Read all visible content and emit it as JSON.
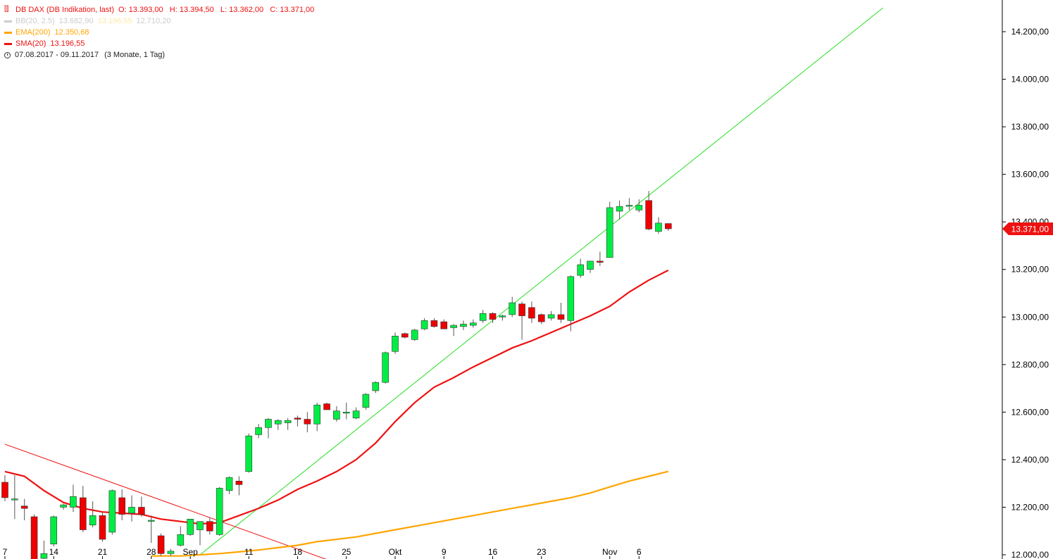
{
  "legend": {
    "instrument_icon": "candlestick-icon",
    "instrument": "DB DAX (DB Indikation, last)",
    "ohlc": "O: 13.393,00   H: 13.394,50   L: 13.362,00   C: 13.371,00",
    "bb_label": "BB(20, 2.5)",
    "bb_values": [
      "13.682,90",
      "13.196,55",
      "12.710,20"
    ],
    "ema_label": "EMA(200)",
    "ema_value": "12.350,68",
    "sma_label": "SMA(20)",
    "sma_value": "13.196,55",
    "range_icon": "clock-icon",
    "range": "07.08.2017 - 09.11.2017",
    "range_detail": "(3 Monate, 1 Tag)"
  },
  "colors": {
    "up": "#00ee44",
    "down": "#ee0000",
    "sma": "#ee1111",
    "ema": "#ffa500",
    "bb": "#cccccc",
    "bb_mid": "#ffe9a8",
    "trend_up": "#22dd22",
    "trend_down": "#ee1111",
    "text": "#ee1111",
    "axis": "#000000"
  },
  "last_price_label": "13.371,00",
  "chart_data": {
    "type": "candlestick",
    "ylim": [
      12000,
      14300
    ],
    "yticks": [
      {
        "value": 12000,
        "label": "12.000,00"
      },
      {
        "value": 12200,
        "label": "12.200,00"
      },
      {
        "value": 12400,
        "label": "12.400,00"
      },
      {
        "value": 12600,
        "label": "12.600,00"
      },
      {
        "value": 12800,
        "label": "12.800,00"
      },
      {
        "value": 13000,
        "label": "13.000,00"
      },
      {
        "value": 13200,
        "label": "13.200,00"
      },
      {
        "value": 13400,
        "label": "13.400,00"
      },
      {
        "value": 13600,
        "label": "13.600,00"
      },
      {
        "value": 13800,
        "label": "13.800,00"
      },
      {
        "value": 14000,
        "label": "14.000,00"
      },
      {
        "value": 14200,
        "label": "14.200,00"
      }
    ],
    "xticks": [
      {
        "index": 0,
        "label": "7"
      },
      {
        "index": 5,
        "label": "14"
      },
      {
        "index": 10,
        "label": "21"
      },
      {
        "index": 15,
        "label": "28"
      },
      {
        "index": 19,
        "label": "Sep"
      },
      {
        "index": 25,
        "label": "11"
      },
      {
        "index": 30,
        "label": "18"
      },
      {
        "index": 35,
        "label": "25"
      },
      {
        "index": 40,
        "label": "Okt"
      },
      {
        "index": 45,
        "label": "9"
      },
      {
        "index": 50,
        "label": "16"
      },
      {
        "index": 55,
        "label": "23"
      },
      {
        "index": 62,
        "label": "Nov"
      },
      {
        "index": 65,
        "label": "6"
      }
    ],
    "candles": [
      {
        "o": 12305,
        "h": 12335,
        "l": 12225,
        "c": 12240
      },
      {
        "o": 12235,
        "h": 12335,
        "l": 12150,
        "c": 12235
      },
      {
        "o": 12205,
        "h": 12235,
        "l": 12145,
        "c": 12195
      },
      {
        "o": 12160,
        "h": 12170,
        "l": 11900,
        "c": 11945
      },
      {
        "o": 11985,
        "h": 12060,
        "l": 11935,
        "c": 12005
      },
      {
        "o": 12045,
        "h": 12165,
        "l": 12035,
        "c": 12160
      },
      {
        "o": 12200,
        "h": 12215,
        "l": 12190,
        "c": 12210
      },
      {
        "o": 12200,
        "h": 12295,
        "l": 12180,
        "c": 12245
      },
      {
        "o": 12240,
        "h": 12290,
        "l": 12095,
        "c": 12105
      },
      {
        "o": 12125,
        "h": 12225,
        "l": 12115,
        "c": 12165
      },
      {
        "o": 12165,
        "h": 12180,
        "l": 12055,
        "c": 12065
      },
      {
        "o": 12095,
        "h": 12275,
        "l": 12085,
        "c": 12270
      },
      {
        "o": 12240,
        "h": 12275,
        "l": 12145,
        "c": 12170
      },
      {
        "o": 12175,
        "h": 12250,
        "l": 12140,
        "c": 12200
      },
      {
        "o": 12200,
        "h": 12245,
        "l": 12160,
        "c": 12170
      },
      {
        "o": 12145,
        "h": 12165,
        "l": 12050,
        "c": 12145
      },
      {
        "o": 12080,
        "h": 12090,
        "l": 11995,
        "c": 12005
      },
      {
        "o": 12005,
        "h": 12025,
        "l": 11995,
        "c": 12015
      },
      {
        "o": 12040,
        "h": 12120,
        "l": 12035,
        "c": 12085
      },
      {
        "o": 12085,
        "h": 12150,
        "l": 12080,
        "c": 12150
      },
      {
        "o": 12105,
        "h": 12140,
        "l": 12040,
        "c": 12140
      },
      {
        "o": 12140,
        "h": 12155,
        "l": 12085,
        "c": 12100
      },
      {
        "o": 12085,
        "h": 12285,
        "l": 12080,
        "c": 12280
      },
      {
        "o": 12270,
        "h": 12330,
        "l": 12255,
        "c": 12325
      },
      {
        "o": 12310,
        "h": 12330,
        "l": 12250,
        "c": 12295
      },
      {
        "o": 12350,
        "h": 12510,
        "l": 12345,
        "c": 12500
      },
      {
        "o": 12505,
        "h": 12550,
        "l": 12490,
        "c": 12535
      },
      {
        "o": 12535,
        "h": 12575,
        "l": 12490,
        "c": 12570
      },
      {
        "o": 12550,
        "h": 12570,
        "l": 12525,
        "c": 12565
      },
      {
        "o": 12555,
        "h": 12575,
        "l": 12525,
        "c": 12565
      },
      {
        "o": 12575,
        "h": 12585,
        "l": 12540,
        "c": 12570
      },
      {
        "o": 12570,
        "h": 12600,
        "l": 12515,
        "c": 12550
      },
      {
        "o": 12550,
        "h": 12640,
        "l": 12520,
        "c": 12630
      },
      {
        "o": 12635,
        "h": 12640,
        "l": 12610,
        "c": 12610
      },
      {
        "o": 12570,
        "h": 12625,
        "l": 12560,
        "c": 12605
      },
      {
        "o": 12600,
        "h": 12640,
        "l": 12570,
        "c": 12600
      },
      {
        "o": 12575,
        "h": 12620,
        "l": 12570,
        "c": 12605
      },
      {
        "o": 12620,
        "h": 12680,
        "l": 12610,
        "c": 12675
      },
      {
        "o": 12690,
        "h": 12730,
        "l": 12680,
        "c": 12725
      },
      {
        "o": 12725,
        "h": 12855,
        "l": 12720,
        "c": 12850
      },
      {
        "o": 12855,
        "h": 12935,
        "l": 12845,
        "c": 12920
      },
      {
        "o": 12930,
        "h": 12935,
        "l": 12910,
        "c": 12915
      },
      {
        "o": 12905,
        "h": 12950,
        "l": 12900,
        "c": 12945
      },
      {
        "o": 12950,
        "h": 12995,
        "l": 12945,
        "c": 12985
      },
      {
        "o": 12985,
        "h": 12995,
        "l": 12955,
        "c": 12960
      },
      {
        "o": 12980,
        "h": 12990,
        "l": 12950,
        "c": 12950
      },
      {
        "o": 12955,
        "h": 12970,
        "l": 12920,
        "c": 12965
      },
      {
        "o": 12960,
        "h": 12985,
        "l": 12945,
        "c": 12970
      },
      {
        "o": 12965,
        "h": 12990,
        "l": 12955,
        "c": 12975
      },
      {
        "o": 12985,
        "h": 13030,
        "l": 12975,
        "c": 13015
      },
      {
        "o": 13015,
        "h": 13020,
        "l": 12975,
        "c": 12990
      },
      {
        "o": 13000,
        "h": 13010,
        "l": 12985,
        "c": 13005
      },
      {
        "o": 13010,
        "h": 13085,
        "l": 13000,
        "c": 13060
      },
      {
        "o": 13055,
        "h": 13065,
        "l": 12905,
        "c": 13005
      },
      {
        "o": 13040,
        "h": 13065,
        "l": 12975,
        "c": 12995
      },
      {
        "o": 13010,
        "h": 13015,
        "l": 12970,
        "c": 12980
      },
      {
        "o": 12995,
        "h": 13025,
        "l": 12985,
        "c": 13010
      },
      {
        "o": 13010,
        "h": 13060,
        "l": 12975,
        "c": 12990
      },
      {
        "o": 12985,
        "h": 13175,
        "l": 12940,
        "c": 13170
      },
      {
        "o": 13175,
        "h": 13245,
        "l": 13165,
        "c": 13220
      },
      {
        "o": 13200,
        "h": 13230,
        "l": 13185,
        "c": 13235
      },
      {
        "o": 13235,
        "h": 13275,
        "l": 13215,
        "c": 13230
      },
      {
        "o": 13250,
        "h": 13485,
        "l": 13250,
        "c": 13460
      },
      {
        "o": 13445,
        "h": 13490,
        "l": 13410,
        "c": 13465
      },
      {
        "o": 13470,
        "h": 13500,
        "l": 13450,
        "c": 13470
      },
      {
        "o": 13450,
        "h": 13495,
        "l": 13440,
        "c": 13470
      },
      {
        "o": 13490,
        "h": 13530,
        "l": 13365,
        "c": 13370
      },
      {
        "o": 13360,
        "h": 13420,
        "l": 13350,
        "c": 13395
      },
      {
        "o": 13393,
        "h": 13394.5,
        "l": 13362,
        "c": 13371
      }
    ],
    "sma20": [
      [
        0,
        12350
      ],
      [
        2,
        12330
      ],
      [
        4,
        12270
      ],
      [
        6,
        12220
      ],
      [
        8,
        12195
      ],
      [
        10,
        12180
      ],
      [
        12,
        12175
      ],
      [
        14,
        12170
      ],
      [
        16,
        12150
      ],
      [
        18,
        12140
      ],
      [
        20,
        12130
      ],
      [
        22,
        12135
      ],
      [
        24,
        12165
      ],
      [
        26,
        12195
      ],
      [
        28,
        12230
      ],
      [
        30,
        12275
      ],
      [
        32,
        12310
      ],
      [
        34,
        12350
      ],
      [
        36,
        12400
      ],
      [
        38,
        12470
      ],
      [
        40,
        12560
      ],
      [
        42,
        12640
      ],
      [
        44,
        12705
      ],
      [
        46,
        12745
      ],
      [
        48,
        12790
      ],
      [
        50,
        12830
      ],
      [
        52,
        12870
      ],
      [
        54,
        12900
      ],
      [
        56,
        12935
      ],
      [
        58,
        12970
      ],
      [
        60,
        13005
      ],
      [
        62,
        13045
      ],
      [
        64,
        13105
      ],
      [
        66,
        13155
      ],
      [
        68,
        13196.55
      ]
    ],
    "ema200": [
      [
        15,
        11995
      ],
      [
        18,
        11995
      ],
      [
        20,
        12000
      ],
      [
        22,
        12005
      ],
      [
        24,
        12012
      ],
      [
        26,
        12020
      ],
      [
        28,
        12030
      ],
      [
        30,
        12040
      ],
      [
        32,
        12055
      ],
      [
        36,
        12075
      ],
      [
        40,
        12105
      ],
      [
        44,
        12135
      ],
      [
        48,
        12165
      ],
      [
        52,
        12195
      ],
      [
        56,
        12225
      ],
      [
        58,
        12240
      ],
      [
        60,
        12260
      ],
      [
        62,
        12285
      ],
      [
        64,
        12310
      ],
      [
        66,
        12330
      ],
      [
        68,
        12350.68
      ]
    ],
    "trend_up": [
      [
        20,
        12000
      ],
      [
        90,
        14300
      ]
    ],
    "trend_down": [
      [
        0,
        12465
      ],
      [
        33,
        11980
      ]
    ]
  }
}
